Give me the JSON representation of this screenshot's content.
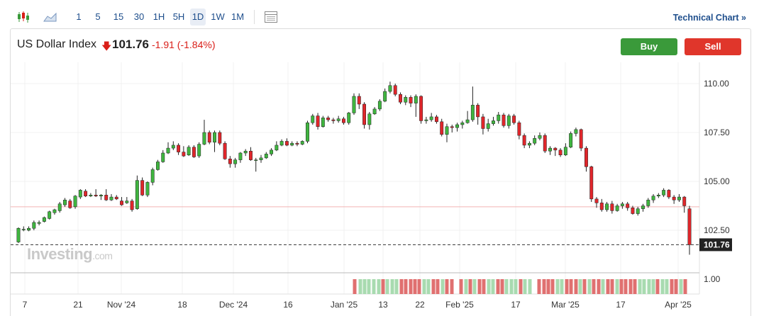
{
  "toolbar": {
    "intervals": [
      "1",
      "5",
      "15",
      "30",
      "1H",
      "5H",
      "1D",
      "1W",
      "1M"
    ],
    "active_interval": "1D",
    "technical_chart": "Technical Chart »"
  },
  "header": {
    "name": "US Dollar Index",
    "price": "101.76",
    "change": "-1.91 (-1.84%)",
    "buy_label": "Buy",
    "sell_label": "Sell"
  },
  "watermark": {
    "main": "Investing",
    "suffix": ".com"
  },
  "colors": {
    "up": "#3fb53f",
    "down": "#e0262b",
    "vol_up": "#a8dbb0",
    "vol_down": "#e07070",
    "ref_line": "#f2b3b3"
  },
  "chart_data": {
    "type": "candlestick",
    "y_ticks": [
      "110.00",
      "107.50",
      "105.00",
      "102.50"
    ],
    "ylim": [
      101.0,
      111.0
    ],
    "last_price_label": "101.76",
    "reference_line": 103.7,
    "volume_axis_label": "1.00",
    "x_ticks": [
      "7",
      "21",
      "Nov '24",
      "18",
      "Dec '24",
      "16",
      "Jan '25",
      "13",
      "22",
      "Feb '25",
      "17",
      "Mar '25",
      "17",
      "Apr '25"
    ],
    "candles": [
      [
        101.9,
        102.6,
        102.65,
        101.85
      ],
      [
        102.55,
        102.55,
        102.7,
        102.45
      ],
      [
        102.5,
        102.6,
        102.7,
        102.45
      ],
      [
        102.6,
        102.9,
        103.0,
        102.5
      ],
      [
        102.85,
        102.9,
        103.0,
        102.75
      ],
      [
        102.95,
        103.15,
        103.2,
        102.9
      ],
      [
        103.1,
        103.45,
        103.5,
        103.05
      ],
      [
        103.4,
        103.55,
        103.6,
        103.3
      ],
      [
        103.5,
        103.85,
        103.95,
        103.4
      ],
      [
        103.8,
        104.05,
        104.15,
        103.7
      ],
      [
        104.0,
        103.65,
        104.1,
        103.6
      ],
      [
        103.7,
        104.25,
        104.3,
        103.6
      ],
      [
        104.2,
        104.55,
        104.6,
        104.1
      ],
      [
        104.5,
        104.25,
        104.6,
        104.2
      ],
      [
        104.25,
        104.3,
        104.4,
        104.2
      ],
      [
        104.3,
        104.25,
        104.6,
        104.2
      ],
      [
        104.25,
        104.3,
        104.35,
        104.05
      ],
      [
        104.3,
        104.05,
        104.6,
        104.0
      ],
      [
        104.05,
        104.2,
        104.35,
        104.0
      ],
      [
        104.2,
        104.1,
        104.3,
        104.05
      ],
      [
        104.0,
        103.8,
        104.2,
        103.75
      ],
      [
        103.9,
        104.0,
        104.2,
        103.85
      ],
      [
        104.0,
        103.55,
        104.1,
        103.45
      ],
      [
        103.6,
        105.05,
        105.3,
        103.55
      ],
      [
        105.05,
        104.3,
        105.2,
        104.25
      ],
      [
        104.3,
        104.95,
        105.0,
        104.2
      ],
      [
        104.95,
        105.6,
        105.7,
        104.8
      ],
      [
        105.6,
        106.0,
        106.1,
        105.55
      ],
      [
        106.0,
        106.45,
        106.6,
        105.95
      ],
      [
        106.45,
        106.7,
        107.0,
        106.4
      ],
      [
        106.7,
        106.85,
        107.05,
        106.6
      ],
      [
        106.85,
        106.5,
        106.95,
        106.35
      ],
      [
        106.5,
        106.3,
        106.8,
        106.25
      ],
      [
        106.35,
        106.75,
        106.85,
        106.3
      ],
      [
        106.75,
        106.25,
        106.85,
        106.2
      ],
      [
        106.3,
        106.9,
        107.0,
        106.2
      ],
      [
        106.9,
        107.5,
        108.15,
        106.85
      ],
      [
        107.5,
        107.0,
        107.6,
        106.9
      ],
      [
        107.0,
        107.5,
        107.6,
        106.5
      ],
      [
        107.5,
        106.95,
        107.6,
        106.85
      ],
      [
        106.95,
        106.15,
        107.05,
        106.1
      ],
      [
        106.15,
        105.9,
        106.3,
        105.7
      ],
      [
        105.9,
        106.1,
        106.2,
        105.7
      ],
      [
        106.1,
        106.45,
        106.5,
        105.95
      ],
      [
        106.45,
        106.55,
        106.65,
        106.3
      ],
      [
        106.55,
        106.1,
        106.75,
        106.05
      ],
      [
        106.1,
        106.1,
        106.2,
        105.5
      ],
      [
        106.1,
        106.2,
        106.35,
        105.95
      ],
      [
        106.2,
        106.4,
        106.5,
        106.15
      ],
      [
        106.4,
        106.6,
        106.7,
        106.3
      ],
      [
        106.6,
        106.85,
        107.05,
        106.55
      ],
      [
        106.85,
        107.05,
        107.15,
        106.8
      ],
      [
        107.05,
        106.85,
        107.2,
        106.8
      ],
      [
        106.85,
        106.95,
        107.05,
        106.8
      ],
      [
        106.95,
        106.9,
        107.05,
        106.8
      ],
      [
        106.9,
        107.05,
        107.1,
        106.85
      ],
      [
        107.05,
        108.0,
        108.1,
        106.95
      ],
      [
        108.0,
        108.35,
        108.45,
        107.9
      ],
      [
        108.35,
        107.8,
        108.5,
        107.65
      ],
      [
        107.8,
        108.25,
        108.35,
        107.75
      ],
      [
        108.25,
        108.15,
        108.35,
        108.05
      ],
      [
        108.15,
        108.1,
        108.25,
        107.95
      ],
      [
        108.1,
        108.2,
        108.35,
        108.0
      ],
      [
        108.2,
        108.0,
        108.3,
        107.9
      ],
      [
        108.0,
        108.5,
        108.55,
        107.9
      ],
      [
        108.5,
        109.35,
        109.5,
        108.4
      ],
      [
        109.35,
        108.95,
        109.5,
        108.7
      ],
      [
        108.95,
        107.9,
        109.05,
        107.7
      ],
      [
        107.9,
        108.45,
        108.55,
        107.65
      ],
      [
        108.45,
        108.7,
        108.8,
        108.4
      ],
      [
        108.7,
        109.1,
        109.2,
        108.6
      ],
      [
        109.1,
        109.6,
        109.75,
        109.05
      ],
      [
        109.6,
        109.9,
        110.1,
        109.5
      ],
      [
        109.9,
        109.45,
        110.0,
        109.35
      ],
      [
        109.45,
        109.05,
        109.55,
        108.95
      ],
      [
        109.05,
        109.3,
        109.4,
        108.9
      ],
      [
        109.3,
        109.0,
        109.4,
        108.8
      ],
      [
        109.0,
        109.35,
        109.45,
        108.3
      ],
      [
        109.35,
        108.1,
        109.4,
        107.95
      ],
      [
        108.1,
        108.15,
        108.3,
        107.95
      ],
      [
        108.15,
        108.3,
        108.5,
        108.05
      ],
      [
        108.3,
        108.05,
        108.4,
        107.95
      ],
      [
        108.05,
        107.4,
        108.2,
        107.3
      ],
      [
        107.4,
        107.8,
        107.95,
        107.0
      ],
      [
        107.8,
        107.75,
        107.9,
        107.5
      ],
      [
        107.75,
        107.9,
        108.0,
        107.55
      ],
      [
        107.9,
        108.0,
        108.1,
        107.7
      ],
      [
        108.0,
        108.15,
        108.6,
        107.95
      ],
      [
        108.15,
        108.9,
        109.85,
        108.05
      ],
      [
        108.9,
        108.3,
        109.0,
        107.9
      ],
      [
        108.3,
        107.7,
        108.45,
        107.4
      ],
      [
        107.7,
        107.95,
        108.2,
        107.55
      ],
      [
        107.95,
        108.1,
        108.3,
        107.85
      ],
      [
        108.1,
        108.4,
        108.55,
        107.95
      ],
      [
        108.4,
        107.85,
        108.5,
        107.75
      ],
      [
        107.85,
        108.35,
        108.45,
        107.7
      ],
      [
        108.35,
        108.0,
        108.45,
        107.9
      ],
      [
        108.0,
        107.35,
        108.1,
        107.15
      ],
      [
        107.35,
        106.85,
        107.45,
        106.7
      ],
      [
        106.85,
        106.95,
        107.05,
        106.7
      ],
      [
        106.95,
        107.2,
        107.35,
        106.85
      ],
      [
        107.2,
        107.35,
        107.5,
        107.1
      ],
      [
        107.35,
        106.55,
        107.45,
        106.45
      ],
      [
        106.55,
        106.7,
        106.8,
        106.35
      ],
      [
        106.7,
        106.6,
        106.75,
        106.3
      ],
      [
        106.6,
        106.35,
        106.7,
        106.25
      ],
      [
        106.35,
        106.75,
        106.95,
        106.3
      ],
      [
        106.75,
        107.45,
        107.55,
        106.7
      ],
      [
        107.45,
        107.65,
        107.75,
        107.3
      ],
      [
        107.65,
        106.7,
        107.7,
        106.55
      ],
      [
        106.7,
        105.75,
        106.8,
        105.5
      ],
      [
        105.75,
        104.1,
        105.8,
        103.95
      ],
      [
        104.1,
        103.9,
        104.2,
        103.65
      ],
      [
        103.9,
        103.55,
        104.1,
        103.45
      ],
      [
        103.55,
        103.85,
        103.95,
        103.45
      ],
      [
        103.85,
        103.5,
        104.0,
        103.35
      ],
      [
        103.5,
        103.75,
        103.85,
        103.45
      ],
      [
        103.75,
        103.85,
        103.95,
        103.6
      ],
      [
        103.85,
        103.65,
        103.95,
        103.5
      ],
      [
        103.65,
        103.35,
        103.75,
        103.3
      ],
      [
        103.35,
        103.6,
        103.7,
        103.25
      ],
      [
        103.6,
        103.75,
        103.85,
        103.45
      ],
      [
        103.75,
        104.05,
        104.15,
        103.65
      ],
      [
        104.05,
        104.25,
        104.35,
        103.9
      ],
      [
        104.25,
        104.3,
        104.4,
        104.15
      ],
      [
        104.3,
        104.55,
        104.65,
        104.2
      ],
      [
        104.55,
        104.2,
        104.6,
        104.1
      ],
      [
        104.2,
        104.05,
        104.3,
        103.85
      ],
      [
        104.05,
        104.2,
        104.35,
        103.95
      ],
      [
        104.2,
        103.75,
        104.25,
        103.4
      ],
      [
        103.6,
        101.76,
        103.75,
        101.25
      ]
    ],
    "volume_bars": [
      [
        500,
        "d"
      ],
      [
        508,
        "u"
      ],
      [
        514,
        "u"
      ],
      [
        520,
        "u"
      ],
      [
        527,
        "u"
      ],
      [
        534,
        "u"
      ],
      [
        540,
        "d"
      ],
      [
        546,
        "u"
      ],
      [
        553,
        "u"
      ],
      [
        559,
        "u"
      ],
      [
        566,
        "d"
      ],
      [
        572,
        "d"
      ],
      [
        579,
        "d"
      ],
      [
        585,
        "d"
      ],
      [
        591,
        "d"
      ],
      [
        598,
        "u"
      ],
      [
        604,
        "u"
      ],
      [
        611,
        "d"
      ],
      [
        617,
        "d"
      ],
      [
        624,
        "u"
      ],
      [
        630,
        "d"
      ],
      [
        637,
        "d"
      ],
      [
        650,
        "d"
      ],
      [
        657,
        "u"
      ],
      [
        663,
        "d"
      ],
      [
        669,
        "u"
      ],
      [
        676,
        "d"
      ],
      [
        682,
        "d"
      ],
      [
        689,
        "u"
      ],
      [
        695,
        "u"
      ],
      [
        702,
        "d"
      ],
      [
        708,
        "d"
      ],
      [
        714,
        "u"
      ],
      [
        721,
        "u"
      ],
      [
        727,
        "u"
      ],
      [
        734,
        "d"
      ],
      [
        740,
        "u"
      ],
      [
        747,
        "u"
      ],
      [
        760,
        "d"
      ],
      [
        767,
        "d"
      ],
      [
        773,
        "d"
      ],
      [
        779,
        "d"
      ],
      [
        786,
        "u"
      ],
      [
        792,
        "u"
      ],
      [
        799,
        "d"
      ],
      [
        805,
        "d"
      ],
      [
        812,
        "d"
      ],
      [
        818,
        "u"
      ],
      [
        824,
        "d"
      ],
      [
        831,
        "u"
      ],
      [
        837,
        "d"
      ],
      [
        844,
        "d"
      ],
      [
        850,
        "u"
      ],
      [
        857,
        "d"
      ],
      [
        863,
        "d"
      ],
      [
        870,
        "u"
      ],
      [
        876,
        "d"
      ],
      [
        882,
        "d"
      ],
      [
        889,
        "d"
      ],
      [
        895,
        "d"
      ],
      [
        902,
        "u"
      ],
      [
        908,
        "u"
      ],
      [
        915,
        "u"
      ],
      [
        921,
        "u"
      ],
      [
        927,
        "d"
      ],
      [
        934,
        "u"
      ],
      [
        940,
        "u"
      ],
      [
        947,
        "d"
      ],
      [
        953,
        "d"
      ],
      [
        960,
        "u"
      ],
      [
        966,
        "d"
      ]
    ]
  }
}
